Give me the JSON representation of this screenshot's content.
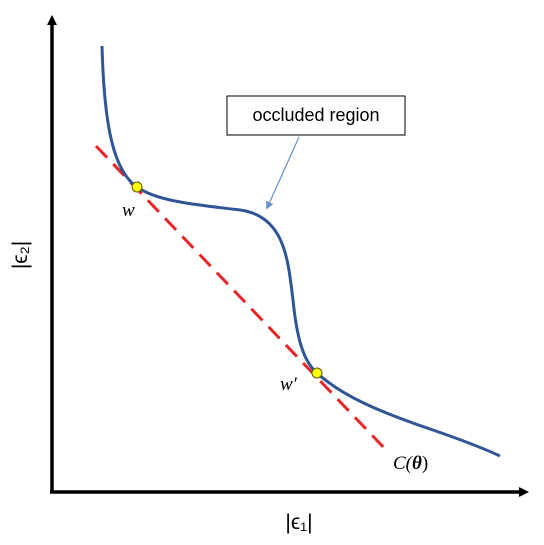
{
  "axes": {
    "x_label": "|ϵ₁|",
    "y_label": "|ϵ₂|"
  },
  "callout": {
    "text": "occluded region"
  },
  "points": [
    {
      "id": "w",
      "label": "w"
    },
    {
      "id": "w_prime",
      "label": "w′"
    }
  ],
  "line_label": "C(",
  "line_label_theta": "θ",
  "line_label_close": ")",
  "colors": {
    "curve": "#2f5597",
    "tangent_line": "#e8262a",
    "point_fill": "#ffff00",
    "axes": "#000000",
    "callout_arrow": "#6a8fc7"
  }
}
